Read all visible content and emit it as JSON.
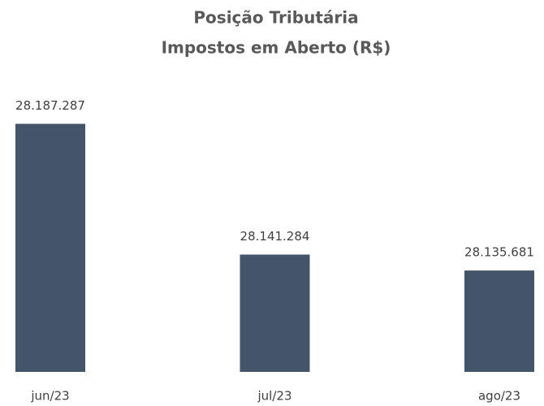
{
  "chart_data": {
    "type": "bar",
    "title": "Posição Tributária",
    "subtitle": "Impostos em Aberto (R$)",
    "categories": [
      "jun/23",
      "jul/23",
      "ago/23"
    ],
    "values": [
      28187287,
      28141284,
      28135681
    ],
    "value_labels": [
      "28.187.287",
      "28.141.284",
      "28.135.681"
    ],
    "color": "#44546a",
    "ylim": [
      28100000,
      28200000
    ],
    "grid": false
  }
}
